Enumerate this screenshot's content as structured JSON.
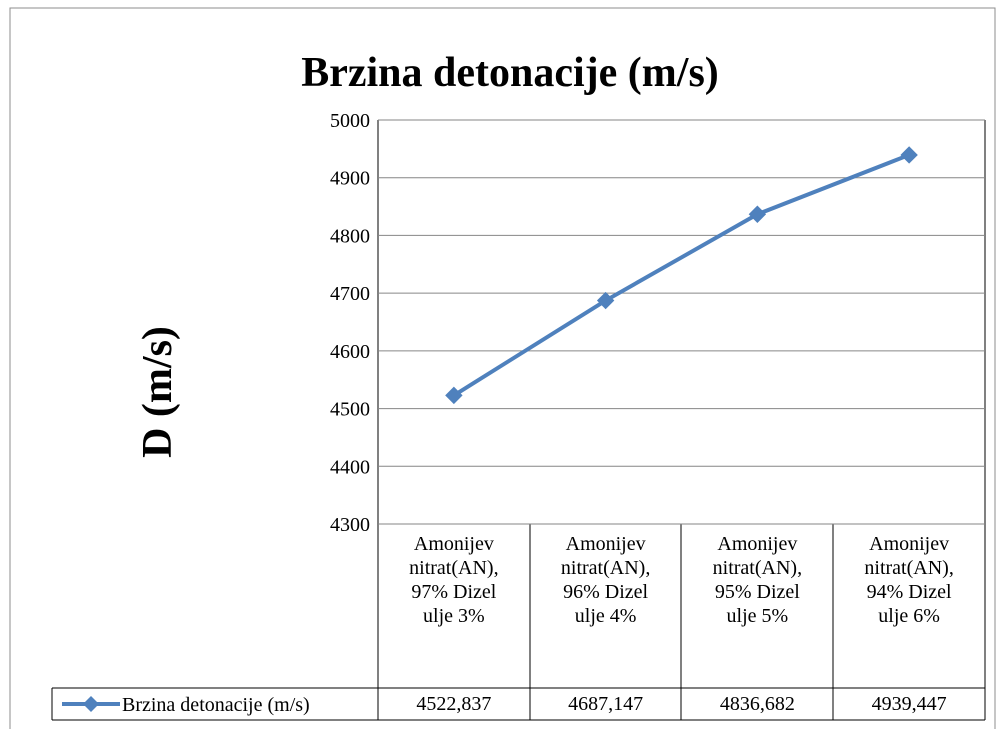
{
  "chart_data": {
    "type": "line",
    "title": "Brzina detonacije (m/s)",
    "y_label": "D (m/s)",
    "categories": [
      "Amonijev nitrat(AN), 97% Dizel ulje 3%",
      "Amonijev nitrat(AN), 96% Dizel ulje 4%",
      "Amonijev nitrat(AN), 95% Dizel ulje 5%",
      "Amonijev nitrat(AN), 94% Dizel ulje 6%"
    ],
    "series": [
      {
        "name": "Brzina detonacije (m/s)",
        "color": "#4f81bd",
        "values": [
          4522.837,
          4687.147,
          4836.682,
          4939.447
        ],
        "value_labels": [
          "4522,837",
          "4687,147",
          "4836,682",
          "4939,447"
        ]
      }
    ],
    "ylim": [
      4300,
      5000
    ],
    "yticks": [
      4300,
      4400,
      4500,
      4600,
      4700,
      4800,
      4900,
      5000
    ],
    "grid": true,
    "legend": "data-table"
  }
}
